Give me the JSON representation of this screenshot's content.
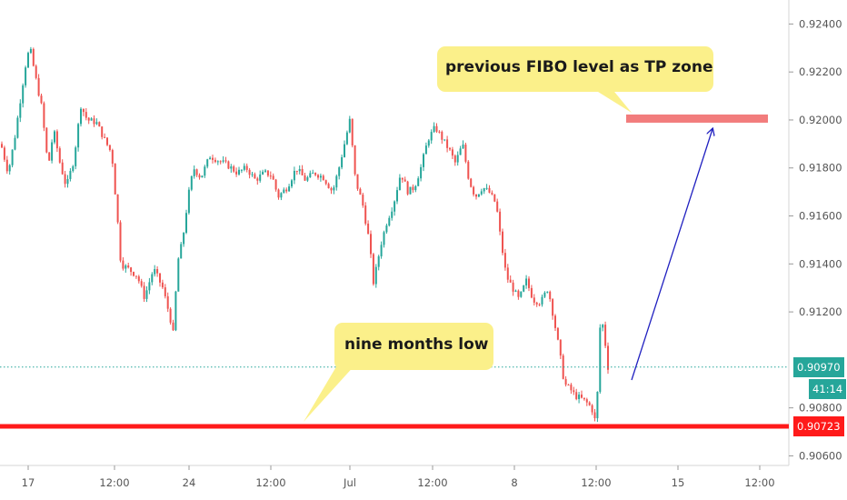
{
  "chart_data": {
    "type": "candlestick",
    "y_ticks": [
      "0.92400",
      "0.92200",
      "0.92000",
      "0.91800",
      "0.91600",
      "0.91400",
      "0.91200",
      "0.90800",
      "0.90600"
    ],
    "ylim": [
      0.9056,
      0.925
    ],
    "x_ticks": [
      "17",
      "12:00",
      "24",
      "12:00",
      "Jul",
      "12:00",
      "8",
      "12:00",
      "15",
      "12:00"
    ],
    "current_price": "0.90970",
    "countdown": "41:14",
    "support_price": "0.90723",
    "colors": {
      "up": "#26a69a",
      "down": "#ef5350",
      "support": "#ff1a1a",
      "tp_zone": "#f27c7c",
      "current_line": "#26a69a",
      "arrow": "#2020c0",
      "callout": "#fbf08a"
    },
    "annotations": {
      "tp_callout": "previous FIBO level as TP zone",
      "low_callout": "nine months low"
    },
    "anchors": [
      [
        0,
        0.919
      ],
      [
        8,
        0.9178
      ],
      [
        15,
        0.9192
      ],
      [
        22,
        0.921
      ],
      [
        28,
        0.9225
      ],
      [
        32,
        0.923
      ],
      [
        38,
        0.9218
      ],
      [
        45,
        0.9205
      ],
      [
        52,
        0.918
      ],
      [
        58,
        0.9196
      ],
      [
        65,
        0.9182
      ],
      [
        72,
        0.9172
      ],
      [
        80,
        0.9183
      ],
      [
        88,
        0.9206
      ],
      [
        95,
        0.92
      ],
      [
        105,
        0.9199
      ],
      [
        115,
        0.9191
      ],
      [
        122,
        0.9186
      ],
      [
        128,
        0.916
      ],
      [
        132,
        0.914
      ],
      [
        140,
        0.9138
      ],
      [
        150,
        0.9135
      ],
      [
        158,
        0.9126
      ],
      [
        168,
        0.9138
      ],
      [
        178,
        0.913
      ],
      [
        186,
        0.9118
      ],
      [
        190,
        0.911
      ],
      [
        194,
        0.914
      ],
      [
        200,
        0.915
      ],
      [
        206,
        0.9168
      ],
      [
        212,
        0.918
      ],
      [
        220,
        0.9176
      ],
      [
        230,
        0.9185
      ],
      [
        240,
        0.9183
      ],
      [
        250,
        0.9181
      ],
      [
        260,
        0.9178
      ],
      [
        270,
        0.918
      ],
      [
        280,
        0.9175
      ],
      [
        290,
        0.9178
      ],
      [
        298,
        0.9177
      ],
      [
        305,
        0.9168
      ],
      [
        315,
        0.9172
      ],
      [
        325,
        0.918
      ],
      [
        335,
        0.9175
      ],
      [
        345,
        0.9178
      ],
      [
        355,
        0.9176
      ],
      [
        365,
        0.917
      ],
      [
        372,
        0.918
      ],
      [
        378,
        0.919
      ],
      [
        384,
        0.92
      ],
      [
        390,
        0.9175
      ],
      [
        398,
        0.9165
      ],
      [
        405,
        0.915
      ],
      [
        410,
        0.9132
      ],
      [
        418,
        0.9148
      ],
      [
        425,
        0.9158
      ],
      [
        432,
        0.9165
      ],
      [
        440,
        0.9178
      ],
      [
        448,
        0.917
      ],
      [
        455,
        0.9172
      ],
      [
        462,
        0.918
      ],
      [
        470,
        0.9192
      ],
      [
        478,
        0.9197
      ],
      [
        486,
        0.9192
      ],
      [
        494,
        0.9187
      ],
      [
        500,
        0.9182
      ],
      [
        508,
        0.919
      ],
      [
        515,
        0.9175
      ],
      [
        522,
        0.9168
      ],
      [
        530,
        0.9172
      ],
      [
        537,
        0.917
      ],
      [
        545,
        0.9165
      ],
      [
        550,
        0.915
      ],
      [
        556,
        0.9135
      ],
      [
        563,
        0.913
      ],
      [
        570,
        0.9125
      ],
      [
        578,
        0.9133
      ],
      [
        586,
        0.9125
      ],
      [
        594,
        0.9124
      ],
      [
        602,
        0.913
      ],
      [
        608,
        0.9118
      ],
      [
        614,
        0.9105
      ],
      [
        620,
        0.909
      ],
      [
        626,
        0.9088
      ],
      [
        632,
        0.9085
      ],
      [
        638,
        0.9084
      ],
      [
        645,
        0.9082
      ],
      [
        650,
        0.908
      ],
      [
        655,
        0.9073
      ],
      [
        660,
        0.912
      ],
      [
        664,
        0.911
      ],
      [
        668,
        0.9097
      ]
    ]
  }
}
